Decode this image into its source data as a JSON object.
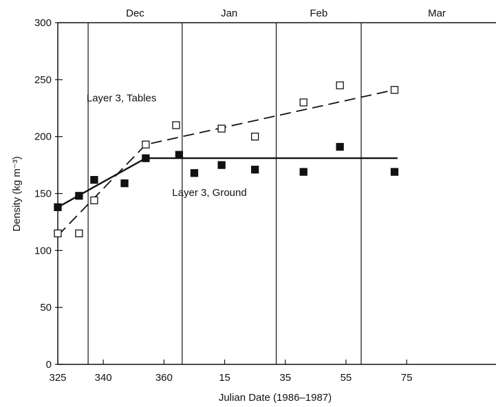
{
  "chart_data": {
    "type": "scatter",
    "title": "",
    "xlabel": "Julian Date (1986–1987)",
    "ylabel": "Density (kg m⁻³)",
    "xlim": [
      325,
      82
    ],
    "ylim": [
      0,
      300
    ],
    "x_ticks": [
      "325",
      "340",
      "360",
      "15",
      "35",
      "55",
      "75"
    ],
    "y_ticks": [
      "0",
      "50",
      "100",
      "150",
      "200",
      "250",
      "300"
    ],
    "grid": false,
    "month_boundaries": [
      {
        "label": "Dec",
        "x": 335
      },
      {
        "label": "Jan",
        "x": 1
      },
      {
        "label": "Feb",
        "x": 32
      },
      {
        "label": "Mar",
        "x": 60
      }
    ],
    "month_labels": [
      "Dec",
      "Jan",
      "Feb",
      "Mar"
    ],
    "series": [
      {
        "label_text": "Layer 3, Tables",
        "marker": "open-square",
        "line_style": "dashed",
        "points": [
          {
            "x": 325,
            "y": 115
          },
          {
            "x": 332,
            "y": 115
          },
          {
            "x": 337,
            "y": 144
          },
          {
            "x": 354,
            "y": 193
          },
          {
            "x": 364,
            "y": 210
          },
          {
            "x": 14,
            "y": 207
          },
          {
            "x": 25,
            "y": 200
          },
          {
            "x": 41,
            "y": 230
          },
          {
            "x": 53,
            "y": 245
          },
          {
            "x": 71,
            "y": 241
          }
        ],
        "fit_line": [
          {
            "x": 325,
            "y": 113
          },
          {
            "x": 354,
            "y": 193
          },
          {
            "x": 71,
            "y": 241
          }
        ]
      },
      {
        "label_text": "Layer 3, Ground",
        "marker": "filled-square",
        "line_style": "solid",
        "points": [
          {
            "x": 325,
            "y": 138
          },
          {
            "x": 332,
            "y": 148
          },
          {
            "x": 337,
            "y": 162
          },
          {
            "x": 347,
            "y": 159
          },
          {
            "x": 354,
            "y": 181
          },
          {
            "x": 365,
            "y": 184
          },
          {
            "x": 5,
            "y": 168
          },
          {
            "x": 14,
            "y": 175
          },
          {
            "x": 25,
            "y": 171
          },
          {
            "x": 41,
            "y": 169
          },
          {
            "x": 53,
            "y": 191
          },
          {
            "x": 71,
            "y": 169
          }
        ],
        "fit_line": [
          {
            "x": 325,
            "y": 138
          },
          {
            "x": 354,
            "y": 181
          },
          {
            "x": 72,
            "y": 181
          }
        ]
      }
    ],
    "annotations": [
      {
        "text": "Layer 3, Tables",
        "anchor_x": 346,
        "anchor_y": 231
      },
      {
        "text": "Layer 3, Ground",
        "anchor_x": 10,
        "anchor_y": 148
      }
    ],
    "colors": {
      "ink": "#111111",
      "background": "#ffffff"
    }
  }
}
